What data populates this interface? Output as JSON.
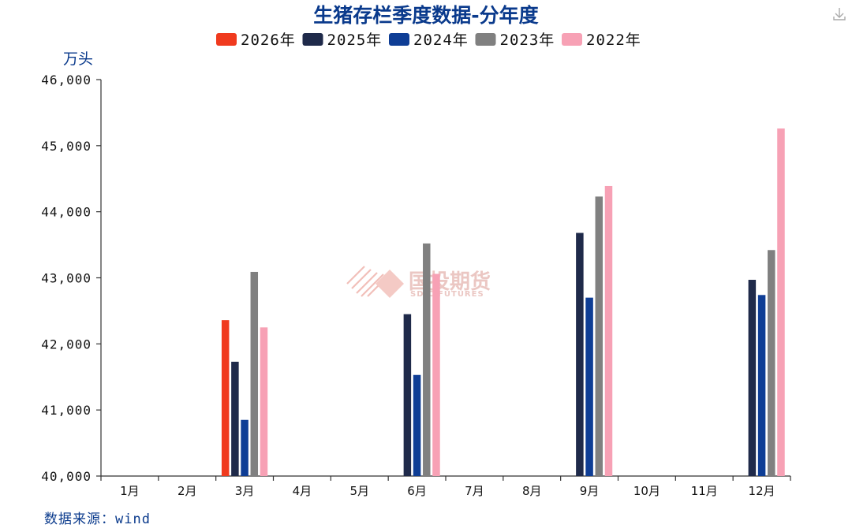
{
  "chart_data": {
    "type": "bar",
    "title": "生猪存栏季度数据-分年度",
    "ylabel": "万头",
    "source": "数据来源：wind",
    "ylim": [
      40000,
      46000
    ],
    "yticks": [
      "40,000",
      "41,000",
      "42,000",
      "43,000",
      "44,000",
      "45,000",
      "46,000"
    ],
    "categories": [
      "1月",
      "2月",
      "3月",
      "4月",
      "5月",
      "6月",
      "7月",
      "8月",
      "9月",
      "10月",
      "11月",
      "12月"
    ],
    "series": [
      {
        "name": "2026年",
        "color": "#f03a1e",
        "values": [
          null,
          null,
          42360,
          null,
          null,
          null,
          null,
          null,
          null,
          null,
          null,
          null
        ]
      },
      {
        "name": "2025年",
        "color": "#1f2a4a",
        "values": [
          null,
          null,
          41730,
          null,
          null,
          42450,
          null,
          null,
          43680,
          null,
          null,
          42970
        ]
      },
      {
        "name": "2024年",
        "color": "#0e3d95",
        "values": [
          null,
          null,
          40850,
          null,
          null,
          41530,
          null,
          null,
          42700,
          null,
          null,
          42740
        ]
      },
      {
        "name": "2023年",
        "color": "#808080",
        "values": [
          null,
          null,
          43090,
          null,
          null,
          43520,
          null,
          null,
          44230,
          null,
          null,
          43420
        ]
      },
      {
        "name": "2022年",
        "color": "#f7a1b5",
        "values": [
          null,
          null,
          42250,
          null,
          null,
          43060,
          null,
          null,
          44390,
          null,
          null,
          45260
        ]
      }
    ]
  },
  "watermark": {
    "name": "国投期货",
    "sub": "SDIC FUTURES"
  },
  "icons": {
    "download": "download-icon"
  }
}
